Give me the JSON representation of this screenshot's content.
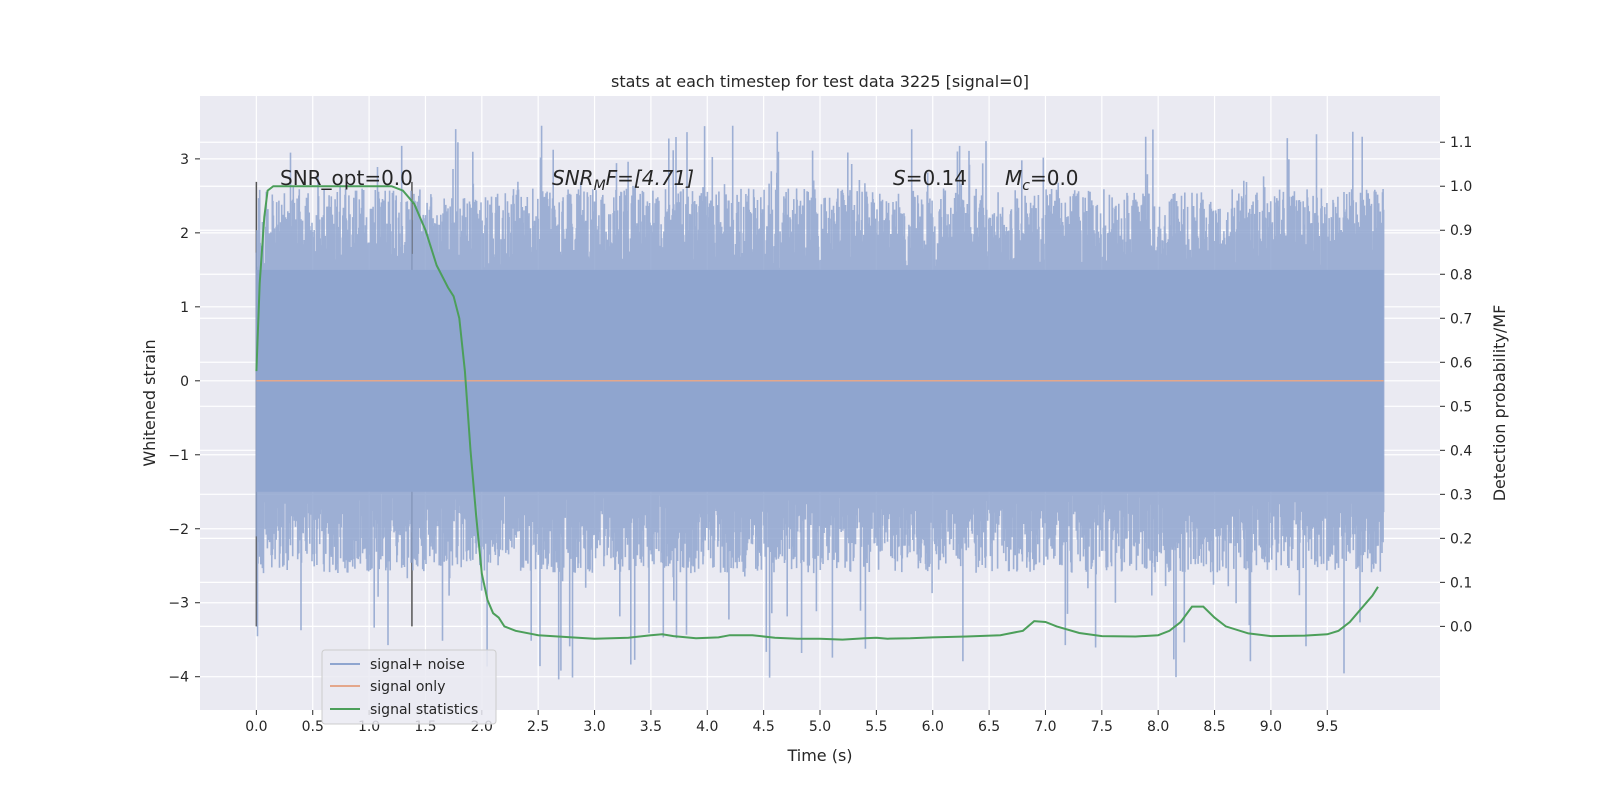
{
  "chart_data": {
    "type": "line",
    "title": "stats at each timestep for test data 3225 [signal=0]",
    "xlabel": "Time (s)",
    "ylabel": "Whitened strain",
    "y2label": "Detection probability/MF",
    "xlim": [
      -0.5,
      10.5
    ],
    "ylim": [
      -4.45,
      3.85
    ],
    "y2lim": [
      -0.19,
      1.205
    ],
    "x_ticks": [
      0.0,
      0.5,
      1.0,
      1.5,
      2.0,
      2.5,
      3.0,
      3.5,
      4.0,
      4.5,
      5.0,
      5.5,
      6.0,
      6.5,
      7.0,
      7.5,
      8.0,
      8.5,
      9.0,
      9.5
    ],
    "x_tick_labels": [
      "0.0",
      "0.5",
      "1.0",
      "1.5",
      "2.0",
      "2.5",
      "3.0",
      "3.5",
      "4.0",
      "4.5",
      "5.0",
      "5.5",
      "6.0",
      "6.5",
      "7.0",
      "7.5",
      "8.0",
      "8.5",
      "9.0",
      "9.5"
    ],
    "y_ticks": [
      -4,
      -3,
      -2,
      -1,
      0,
      1,
      2,
      3
    ],
    "y_tick_labels": [
      "−4",
      "−3",
      "−2",
      "−1",
      "0",
      "1",
      "2",
      "3"
    ],
    "y2_ticks": [
      0.0,
      0.1,
      0.2,
      0.3,
      0.4,
      0.5,
      0.6,
      0.7,
      0.8,
      0.9,
      1.0,
      1.1
    ],
    "y2_tick_labels": [
      "0.0",
      "0.1",
      "0.2",
      "0.3",
      "0.4",
      "0.5",
      "0.6",
      "0.7",
      "0.8",
      "0.9",
      "1.0",
      "1.1"
    ],
    "grid": true,
    "legend_position": "lower-left",
    "annotations": {
      "snr_opt": "SNR_opt=0.0",
      "snr_mf_sym": "SNR",
      "snr_mf_sub": "M",
      "snr_mf_rest": "F=[4.71]",
      "s_sym": "S",
      "s_rest": "=0.14",
      "mc_sym": "M",
      "mc_sub": "c",
      "mc_rest": "=0.0"
    },
    "vlines": [
      0.0,
      1.38
    ],
    "noise": {
      "x_range": [
        0.0,
        10.0
      ],
      "samples": 2048,
      "core_amplitude": 1.5,
      "peak_max": 3.45,
      "peak_min": -4.05
    },
    "series": [
      {
        "name": "signal+ noise",
        "color": "#8fa5cf",
        "axis": "left",
        "style": "dense-noise"
      },
      {
        "name": "signal only",
        "color": "#e4a78b",
        "axis": "left",
        "x": [
          0.0,
          10.0
        ],
        "values": [
          0.0,
          0.0
        ]
      },
      {
        "name": "signal statistics",
        "color": "#4c9f5a",
        "axis": "right",
        "x": [
          0.0,
          0.03,
          0.07,
          0.1,
          0.15,
          0.2,
          0.3,
          0.5,
          0.8,
          1.0,
          1.2,
          1.3,
          1.4,
          1.5,
          1.6,
          1.7,
          1.75,
          1.8,
          1.85,
          1.9,
          1.95,
          2.0,
          2.05,
          2.1,
          2.15,
          2.2,
          2.3,
          2.5,
          2.8,
          3.0,
          3.3,
          3.5,
          3.6,
          3.7,
          3.9,
          4.1,
          4.2,
          4.4,
          4.6,
          4.8,
          5.0,
          5.2,
          5.4,
          5.5,
          5.6,
          5.8,
          6.0,
          6.3,
          6.6,
          6.8,
          6.9,
          7.0,
          7.1,
          7.3,
          7.5,
          7.8,
          8.0,
          8.1,
          8.2,
          8.3,
          8.4,
          8.5,
          8.6,
          8.8,
          9.0,
          9.3,
          9.5,
          9.6,
          9.7,
          9.8,
          9.9,
          9.95
        ],
        "values": [
          0.58,
          0.78,
          0.93,
          0.99,
          1.0,
          1.0,
          1.0,
          1.0,
          1.0,
          1.0,
          1.0,
          0.99,
          0.96,
          0.9,
          0.82,
          0.77,
          0.75,
          0.7,
          0.58,
          0.4,
          0.25,
          0.12,
          0.06,
          0.03,
          0.02,
          0.0,
          -0.01,
          -0.02,
          -0.025,
          -0.028,
          -0.026,
          -0.02,
          -0.018,
          -0.022,
          -0.027,
          -0.025,
          -0.02,
          -0.02,
          -0.026,
          -0.028,
          -0.028,
          -0.03,
          -0.027,
          -0.026,
          -0.028,
          -0.027,
          -0.025,
          -0.023,
          -0.02,
          -0.01,
          0.012,
          0.01,
          0.0,
          -0.015,
          -0.022,
          -0.023,
          -0.02,
          -0.01,
          0.01,
          0.045,
          0.045,
          0.02,
          0.0,
          -0.016,
          -0.022,
          -0.021,
          -0.018,
          -0.01,
          0.01,
          0.04,
          0.07,
          0.09
        ]
      }
    ]
  }
}
